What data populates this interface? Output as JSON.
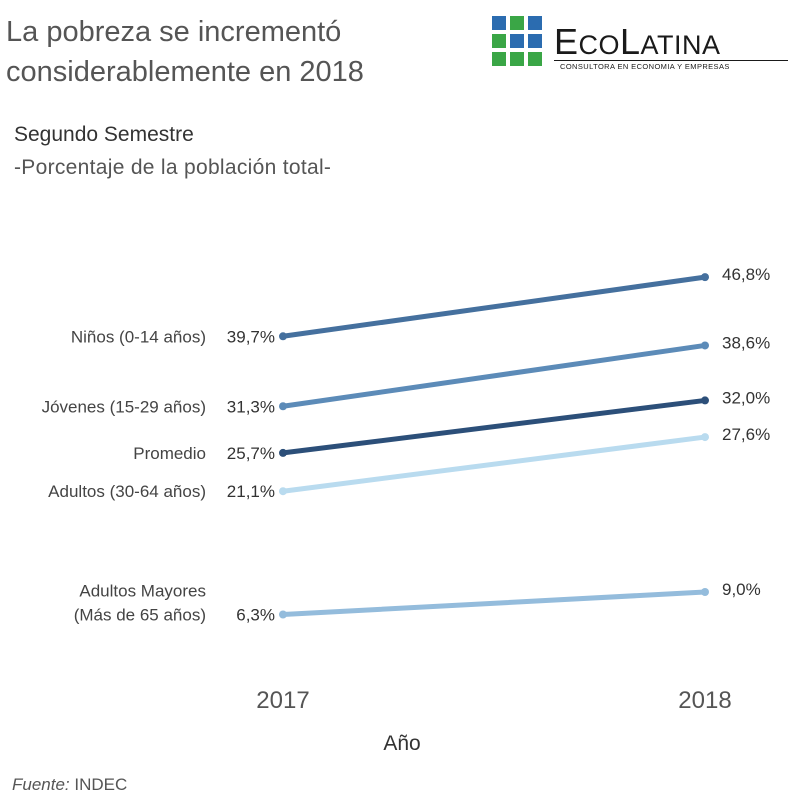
{
  "header": {
    "title_line1": "La pobreza se incrementó",
    "title_line2": "considerablemente en 2018",
    "subtitle": "Segundo Semestre",
    "subtitle2": "-Porcentaje de la población total-"
  },
  "logo": {
    "word_part1": "E",
    "word_part2": "CO",
    "word_part3": "L",
    "word_part4": "ATINA",
    "tagline": "CONSULTORA EN ECONOMIA Y EMPRESAS",
    "colors": [
      "#2b6cb0",
      "#2b6cb0",
      "#2b6cb0",
      "#3aa646",
      "#3aa646",
      "#3aa646"
    ]
  },
  "footer": {
    "source_label": "Fuente:",
    "source_value": " INDEC"
  },
  "chart_data": {
    "type": "line",
    "x": [
      "2017",
      "2018"
    ],
    "xlabel": "Año",
    "ylabel": "",
    "series": [
      {
        "name": "Niños (0-14 años)",
        "label_lines": [
          "Niños (0-14 años)"
        ],
        "values": [
          39.7,
          46.8
        ],
        "value_labels": [
          "39,7%",
          "46,8%"
        ],
        "color": "#45709e"
      },
      {
        "name": "Jóvenes (15-29 años)",
        "label_lines": [
          "Jóvenes (15-29 años)"
        ],
        "values": [
          31.3,
          38.6
        ],
        "value_labels": [
          "31,3%",
          "38,6%"
        ],
        "color": "#5c8bb8"
      },
      {
        "name": "Promedio",
        "label_lines": [
          "Promedio"
        ],
        "values": [
          25.7,
          32.0
        ],
        "value_labels": [
          "25,7%",
          "32,0%"
        ],
        "color": "#2c4f79"
      },
      {
        "name": "Adultos (30-64 años)",
        "label_lines": [
          "Adultos (30-64 años)"
        ],
        "values": [
          21.1,
          27.6
        ],
        "value_labels": [
          "21,1%",
          "27,6%"
        ],
        "color": "#b9dbef"
      },
      {
        "name": "Adultos Mayores (Más de 65 años)",
        "label_lines": [
          "Adultos Mayores",
          "(Más de 65 años)"
        ],
        "values": [
          6.3,
          9.0
        ],
        "value_labels": [
          "6,3%",
          "9,0%"
        ],
        "color": "#94bcdc"
      }
    ]
  }
}
